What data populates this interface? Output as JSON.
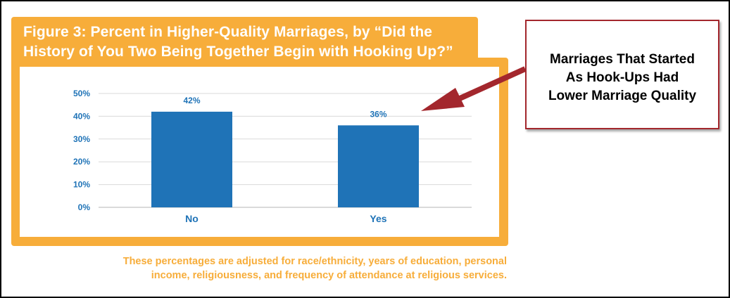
{
  "title_lines": [
    "Figure 3: Percent in Higher-Quality Marriages, by “Did the",
    "History of You Two Being Together Begin with Hooking Up?”"
  ],
  "footnote_lines": [
    "These percentages are adjusted for race/ethnicity, years of education, personal",
    "income, religiousness, and frequency of attendance at religious services."
  ],
  "callout": {
    "lines": [
      "Marriages That Started",
      "As Hook-Ups Had",
      "Lower Marriage Quality"
    ]
  },
  "colors": {
    "accent": "#f7ad3a",
    "bar": "#1f73b7",
    "callout_border": "#a3272d",
    "arrow": "#a3272d"
  },
  "chart_data": {
    "type": "bar",
    "categories": [
      "No",
      "Yes"
    ],
    "values": [
      42,
      36
    ],
    "data_labels": [
      "42%",
      "36%"
    ],
    "y_ticks": [
      "0%",
      "10%",
      "20%",
      "30%",
      "40%",
      "50%"
    ],
    "ylim": [
      0,
      50
    ],
    "grid": true
  }
}
